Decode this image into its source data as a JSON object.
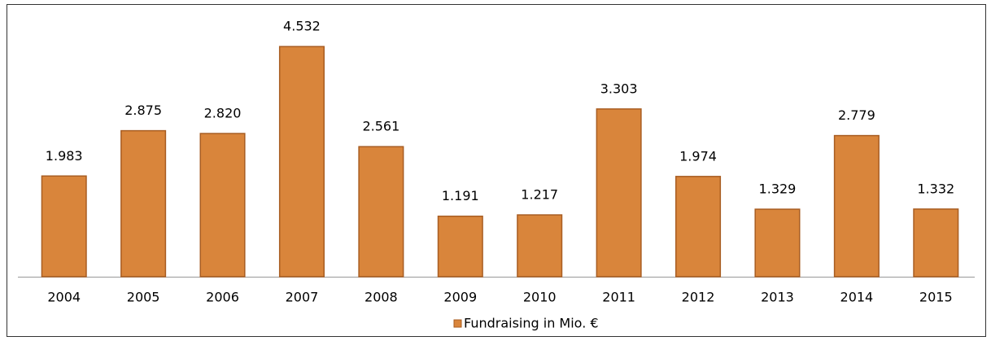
{
  "chart_data": {
    "type": "bar",
    "categories": [
      "2004",
      "2005",
      "2006",
      "2007",
      "2008",
      "2009",
      "2010",
      "2011",
      "2012",
      "2013",
      "2014",
      "2015"
    ],
    "series": [
      {
        "name": "Fundraising in Mio. €",
        "color": "#d9853b",
        "values": [
          1.983,
          2.875,
          2.82,
          4.532,
          2.561,
          1.191,
          1.217,
          3.303,
          1.974,
          1.329,
          2.779,
          1.332
        ],
        "value_labels": [
          "1.983",
          "2.875",
          "2.820",
          "4.532",
          "2.561",
          "1.191",
          "1.217",
          "3.303",
          "1.974",
          "1.329",
          "2.779",
          "1.332"
        ]
      }
    ],
    "ylim": [
      0,
      5
    ],
    "legend": "bottom"
  }
}
